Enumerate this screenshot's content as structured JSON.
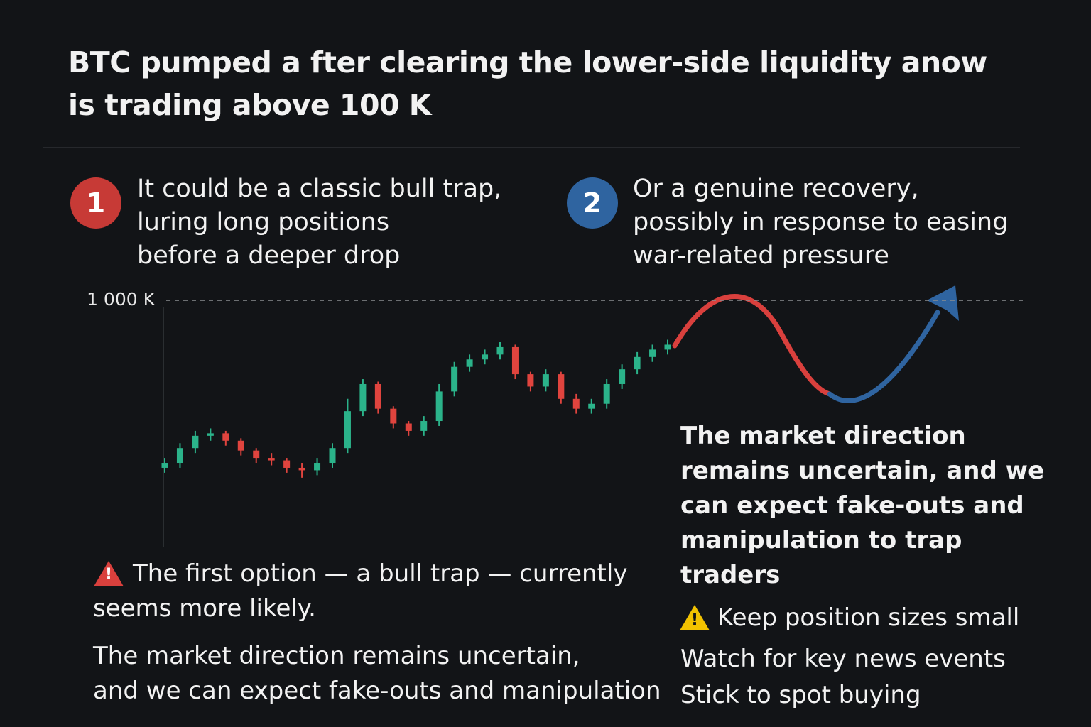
{
  "header": {
    "title_lines": [
      "BTC pumped a  fter clearing the lower-side liquidity anow",
      "is trading above 100 K"
    ]
  },
  "options": [
    {
      "number": "1",
      "lines": [
        "It could be a classic bull trap,",
        "luring long positions",
        "before a deeper drop"
      ]
    },
    {
      "number": "2",
      "lines": [
        "Or a genuine recovery,",
        "possibly in response to easing",
        "war-related pressure"
      ]
    }
  ],
  "chart_data": {
    "type": "candlestick",
    "up_color": "#2bb38a",
    "down_color": "#e0443e",
    "ylim": [
      900,
      1000
    ],
    "yticks": [
      {
        "value": 1000,
        "label": "1 000 K"
      }
    ],
    "open": [
      932,
      934,
      940,
      945,
      946,
      943,
      939,
      936,
      935,
      932,
      931,
      934,
      940,
      955,
      966,
      956,
      950,
      947,
      951,
      963,
      973,
      976,
      978,
      981,
      970,
      965,
      970,
      960,
      956,
      958,
      966,
      972,
      977,
      980
    ],
    "high": [
      936,
      942,
      947,
      948,
      947,
      944,
      940,
      938,
      936,
      934,
      936,
      942,
      960,
      968,
      967,
      957,
      951,
      953,
      966,
      975,
      978,
      980,
      983,
      982,
      971,
      972,
      971,
      962,
      960,
      968,
      974,
      979,
      982,
      984
    ],
    "low": [
      930,
      932,
      938,
      943,
      941,
      937,
      934,
      933,
      930,
      928,
      929,
      932,
      938,
      953,
      954,
      948,
      945,
      945,
      949,
      961,
      971,
      974,
      976,
      968,
      963,
      963,
      958,
      954,
      954,
      956,
      964,
      970,
      975,
      978
    ],
    "close": [
      934,
      940,
      945,
      946,
      943,
      939,
      936,
      935,
      932,
      931,
      934,
      940,
      955,
      966,
      956,
      950,
      947,
      951,
      963,
      973,
      976,
      978,
      981,
      970,
      965,
      970,
      960,
      956,
      958,
      966,
      972,
      977,
      980,
      982
    ]
  },
  "right_note": {
    "lines": [
      "The market direction",
      "remains uncertain, and we",
      "can expect fake-outs and",
      "manipulation to trap",
      "traders"
    ]
  },
  "tips": [
    "Keep position sizes small",
    "Watch for key news events",
    "Stick to spot buying"
  ],
  "left_note": {
    "warning_lines": [
      "The first option — a bull trap — currently",
      "seems more likely."
    ],
    "lines": [
      "The market direction remains uncertain,",
      "and we can expect fake-outs and manipulation"
    ]
  }
}
